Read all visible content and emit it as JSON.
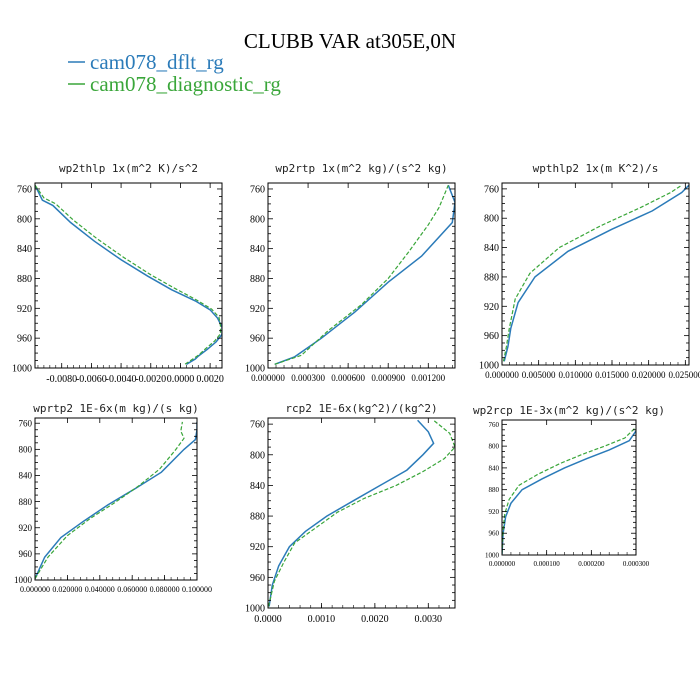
{
  "figure_title": "CLUBB VAR at305E,0N",
  "colors": {
    "dflt": "#2b7bb9",
    "diag": "#3aa63a",
    "axis": "#000000"
  },
  "legend": [
    {
      "label": "cam078_dflt_rg",
      "color": "#2b7bb9",
      "dash": "solid"
    },
    {
      "label": "cam078_diagnostic_rg",
      "color": "#3aa63a",
      "dash": "dashed"
    }
  ],
  "chart_data": [
    {
      "type": "line",
      "title": "wp2thlp   1x(m^2 K)/s^2",
      "xlim": [
        -0.0098,
        0.0028
      ],
      "ylim": [
        1000,
        752
      ],
      "xticks": [
        "-0.0080",
        "-0.0060",
        "-0.0040",
        "-0.0020",
        "0.0000",
        "0.0020"
      ],
      "xtick_values": [
        -0.008,
        -0.006,
        -0.004,
        -0.002,
        0.0,
        0.002
      ],
      "yticks": [
        "760",
        "800",
        "840",
        "880",
        "920",
        "960",
        "1000"
      ],
      "ytick_values": [
        760,
        800,
        840,
        880,
        920,
        960,
        1000
      ],
      "series": [
        {
          "name": "cam078_dflt_rg",
          "x": [
            -0.0098,
            -0.0093,
            -0.0086,
            -0.0074,
            -0.0058,
            -0.004,
            -0.0022,
            -0.0006,
            0.001,
            0.002,
            0.0025,
            0.0028,
            0.0028,
            0.0024,
            0.0018,
            0.0012,
            0.001,
            0.0004
          ],
          "y": [
            755,
            775,
            782,
            805,
            830,
            855,
            877,
            895,
            910,
            922,
            933,
            945,
            955,
            965,
            975,
            984,
            988,
            995
          ]
        },
        {
          "name": "cam078_diagnostic_rg",
          "x": [
            -0.0098,
            -0.0092,
            -0.0084,
            -0.0072,
            -0.0056,
            -0.0038,
            -0.002,
            -0.0004,
            0.0011,
            0.0021,
            0.0026,
            0.0027,
            0.0027,
            0.0023,
            0.0017,
            0.0012,
            0.0009,
            0.0003
          ],
          "y": [
            755,
            772,
            780,
            802,
            827,
            852,
            875,
            893,
            909,
            921,
            932,
            944,
            954,
            964,
            974,
            983,
            987,
            995
          ]
        }
      ]
    },
    {
      "type": "line",
      "title": "wp2rtp   1x(m^2 kg)/(s^2 kg)",
      "xlim": [
        0.0,
        0.0014
      ],
      "ylim": [
        1000,
        752
      ],
      "xticks": [
        "0.000000",
        "0.000300",
        "0.000600",
        "0.000900",
        "0.001200"
      ],
      "xtick_values": [
        0.0,
        0.0003,
        0.0006,
        0.0009,
        0.0012
      ],
      "yticks": [
        "760",
        "800",
        "840",
        "880",
        "920",
        "960",
        "1000"
      ],
      "ytick_values": [
        760,
        800,
        840,
        880,
        920,
        960,
        1000
      ],
      "series": [
        {
          "name": "cam078_dflt_rg",
          "x": [
            5e-05,
            0.0002,
            0.0004,
            0.00065,
            0.0009,
            0.00115,
            0.00138,
            0.0014,
            0.00135
          ],
          "y": [
            995,
            985,
            960,
            925,
            885,
            850,
            805,
            778,
            755
          ]
        },
        {
          "name": "cam078_diagnostic_rg",
          "x": [
            5e-05,
            0.00025,
            0.00045,
            0.0007,
            0.0009,
            0.00105,
            0.0012,
            0.00128,
            0.00135
          ],
          "y": [
            995,
            983,
            950,
            915,
            880,
            845,
            808,
            785,
            755
          ]
        }
      ]
    },
    {
      "type": "line",
      "title": "wpthlp2   1x(m K^2)/s",
      "xlim": [
        0.0,
        0.0255
      ],
      "ylim": [
        1000,
        752
      ],
      "xticks": [
        "0.000000",
        "0.005000",
        "0.010000",
        "0.015000",
        "0.020000",
        "0.025000"
      ],
      "xtick_values": [
        0.0,
        0.005,
        0.01,
        0.015,
        0.02,
        0.025
      ],
      "yticks": [
        "760",
        "800",
        "840",
        "880",
        "920",
        "960",
        "1000"
      ],
      "ytick_values": [
        760,
        800,
        840,
        880,
        920,
        960,
        1000
      ],
      "series": [
        {
          "name": "cam078_dflt_rg",
          "x": [
            0.0003,
            0.0008,
            0.0012,
            0.0022,
            0.0045,
            0.009,
            0.015,
            0.0205,
            0.0245,
            0.0255
          ],
          "y": [
            995,
            975,
            950,
            915,
            880,
            845,
            815,
            790,
            765,
            755
          ]
        },
        {
          "name": "cam078_diagnostic_rg",
          "x": [
            0.0002,
            0.0006,
            0.001,
            0.0018,
            0.0038,
            0.0078,
            0.0135,
            0.019,
            0.023,
            0.0245
          ],
          "y": [
            995,
            975,
            950,
            910,
            875,
            840,
            810,
            785,
            765,
            755
          ]
        }
      ]
    },
    {
      "type": "line",
      "title": "wprtp2   1E-6x(m kg)/(s kg)",
      "xlim": [
        0.0,
        0.1
      ],
      "ylim": [
        1000,
        752
      ],
      "xticks": [
        "0.000000",
        "0.020000",
        "0.040000",
        "0.060000",
        "0.080000",
        "0.100000"
      ],
      "xtick_values": [
        0.0,
        0.02,
        0.04,
        0.06,
        0.08,
        0.1
      ],
      "yticks": [
        "760",
        "800",
        "840",
        "880",
        "920",
        "960",
        "1000"
      ],
      "ytick_values": [
        760,
        800,
        840,
        880,
        920,
        960,
        1000
      ],
      "series": [
        {
          "name": "cam078_dflt_rg",
          "x": [
            0.0,
            0.006,
            0.016,
            0.03,
            0.045,
            0.062,
            0.078,
            0.092,
            0.099,
            0.1,
            0.1
          ],
          "y": [
            998,
            965,
            935,
            910,
            885,
            860,
            835,
            800,
            785,
            770,
            758
          ]
        },
        {
          "name": "cam078_diagnostic_rg",
          "x": [
            0.0,
            0.008,
            0.02,
            0.034,
            0.049,
            0.064,
            0.077,
            0.087,
            0.092,
            0.09,
            0.091
          ],
          "y": [
            998,
            965,
            932,
            906,
            882,
            856,
            830,
            800,
            783,
            772,
            758
          ]
        }
      ]
    },
    {
      "type": "line",
      "title": "rcp2   1E-6x(kg^2)/(kg^2)",
      "xlim": [
        0.0,
        0.0035
      ],
      "ylim": [
        1000,
        752
      ],
      "xticks": [
        "0.0000",
        "0.0010",
        "0.0020",
        "0.0030"
      ],
      "xtick_values": [
        0.0,
        0.001,
        0.002,
        0.003
      ],
      "yticks": [
        "760",
        "800",
        "840",
        "880",
        "920",
        "960",
        "1000"
      ],
      "ytick_values": [
        760,
        800,
        840,
        880,
        920,
        960,
        1000
      ],
      "series": [
        {
          "name": "cam078_dflt_rg",
          "x": [
            2e-05,
            8e-05,
            0.0002,
            0.0004,
            0.0007,
            0.0011,
            0.0016,
            0.0021,
            0.0026,
            0.0029,
            0.0031,
            0.003,
            0.0028
          ],
          "y": [
            998,
            970,
            945,
            920,
            900,
            880,
            860,
            840,
            820,
            800,
            785,
            770,
            755
          ]
        },
        {
          "name": "cam078_diagnostic_rg",
          "x": [
            1e-05,
            0.00012,
            0.0003,
            0.0005,
            0.0009,
            0.0013,
            0.0018,
            0.0024,
            0.0029,
            0.0033,
            0.0035,
            0.0034,
            0.0031
          ],
          "y": [
            998,
            965,
            940,
            915,
            895,
            875,
            857,
            840,
            822,
            805,
            790,
            772,
            755
          ]
        }
      ]
    },
    {
      "type": "line",
      "title": "wp2rcp   1E-3x(m^2 kg)/(s^2 kg)",
      "xlim": [
        0.0,
        0.0003
      ],
      "ylim": [
        1000,
        752
      ],
      "xticks": [
        "0.000000",
        "0.000100",
        "0.000200",
        "0.000300"
      ],
      "xtick_values": [
        0.0,
        0.0001,
        0.0002,
        0.0003
      ],
      "yticks": [
        "760",
        "800",
        "840",
        "880",
        "920",
        "960",
        "1000"
      ],
      "ytick_values": [
        760,
        800,
        840,
        880,
        920,
        960,
        1000
      ],
      "series": [
        {
          "name": "cam078_dflt_rg",
          "x": [
            0.0,
            2.5e-06,
            8e-06,
            2e-05,
            4.5e-05,
            9e-05,
            0.00014,
            0.00019,
            0.00024,
            0.000285,
            0.0003
          ],
          "y": [
            998,
            960,
            930,
            905,
            880,
            860,
            840,
            823,
            807,
            790,
            772
          ]
        },
        {
          "name": "cam078_diagnostic_rg",
          "x": [
            0.0,
            2e-06,
            6e-06,
            1.6e-05,
            3.8e-05,
            8e-05,
            0.00013,
            0.00018,
            0.00023,
            0.000275,
            0.0003
          ],
          "y": [
            998,
            960,
            925,
            898,
            872,
            852,
            832,
            815,
            800,
            785,
            765
          ]
        }
      ]
    }
  ]
}
